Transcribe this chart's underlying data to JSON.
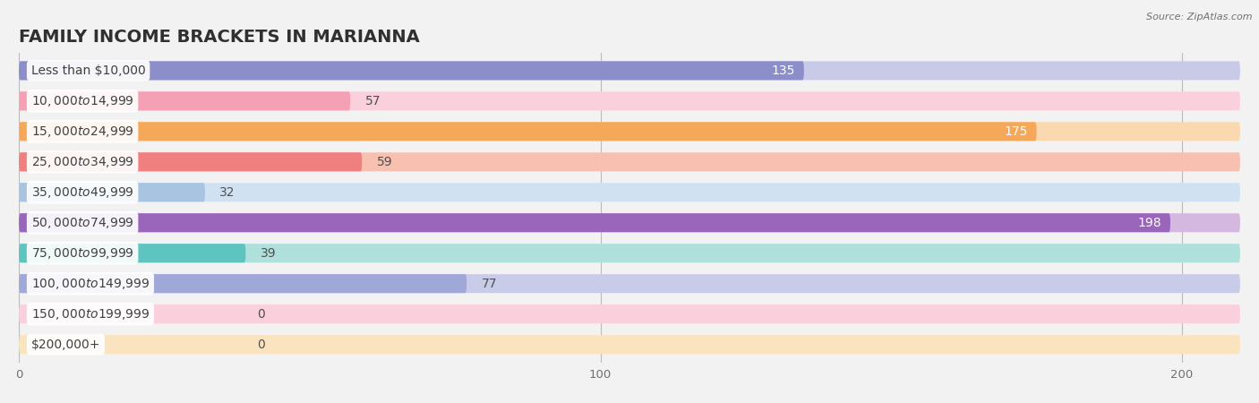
{
  "title": "FAMILY INCOME BRACKETS IN MARIANNA",
  "source": "Source: ZipAtlas.com",
  "categories": [
    "Less than $10,000",
    "$10,000 to $14,999",
    "$15,000 to $24,999",
    "$25,000 to $34,999",
    "$35,000 to $49,999",
    "$50,000 to $74,999",
    "$75,000 to $99,999",
    "$100,000 to $149,999",
    "$150,000 to $199,999",
    "$200,000+"
  ],
  "values": [
    135,
    57,
    175,
    59,
    32,
    198,
    39,
    77,
    0,
    0
  ],
  "bar_colors": [
    "#8B8EC8",
    "#F4A0B5",
    "#F5A85A",
    "#F08080",
    "#A8C4E0",
    "#9966BB",
    "#5EC4C0",
    "#A0A8D8",
    "#F4A0B5",
    "#F5C896"
  ],
  "bar_colors_light": [
    "#C8CAE8",
    "#FAD0DC",
    "#FAD9B0",
    "#F8C0B0",
    "#D0E2F2",
    "#D4B8E0",
    "#B0E0DC",
    "#C8CCE8",
    "#FAD0DC",
    "#FAE4C0"
  ],
  "xlim_max": 210,
  "xlabel_ticks": [
    0,
    100,
    200
  ],
  "background_color": "#f2f2f2",
  "title_fontsize": 14,
  "label_fontsize": 10,
  "value_fontsize": 10
}
